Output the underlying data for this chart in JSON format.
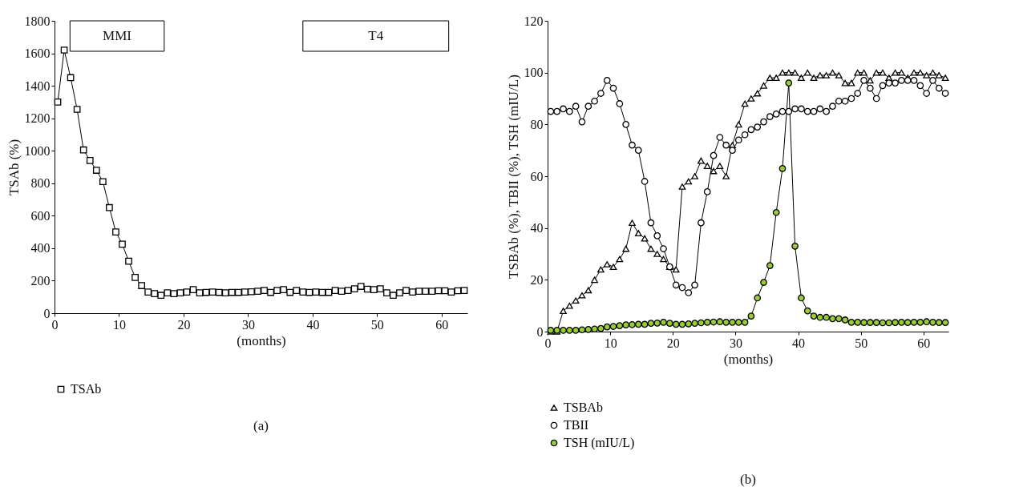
{
  "chart_data": [
    {
      "type": "line",
      "xlabel": "(months)",
      "ylabel": "TSAb (%)",
      "xlim": [
        0,
        64
      ],
      "xticks": [
        0,
        10,
        20,
        30,
        40,
        50,
        60
      ],
      "ylim": [
        0,
        1800
      ],
      "yticks": [
        0,
        200,
        400,
        600,
        800,
        1000,
        1200,
        1400,
        1600,
        1800
      ],
      "legend": "bottom",
      "annotations": [
        "(a)"
      ],
      "bands": [
        {
          "axis": "x",
          "from": 2.4,
          "to": 17,
          "label": "MMI"
        },
        {
          "axis": "x",
          "from": 38.5,
          "to": 61.1,
          "label": "T4"
        }
      ],
      "x": [
        0.5,
        1.5,
        2.5,
        3.5,
        4.5,
        5.5,
        6.5,
        7.5,
        8.5,
        9.5,
        10.5,
        11.5,
        12.5,
        13.5,
        14.5,
        15.5,
        16.5,
        17.5,
        18.5,
        19.5,
        20.5,
        21.5,
        22.5,
        23.5,
        24.5,
        25.5,
        26.5,
        27.5,
        28.5,
        29.5,
        30.5,
        31.5,
        32.5,
        33.5,
        34.5,
        35.5,
        36.5,
        37.5,
        38.5,
        39.5,
        40.5,
        41.5,
        42.5,
        43.5,
        44.5,
        45.5,
        46.5,
        47.5,
        48.5,
        49.5,
        50.5,
        51.5,
        52.5,
        53.5,
        54.5,
        55.5,
        56.5,
        57.5,
        58.5,
        59.5,
        60.5,
        61.5,
        62.5,
        63.5
      ],
      "series": [
        {
          "name": "TSAb",
          "color": "#000000",
          "marker": "square",
          "values": [
            1300,
            1620,
            1450,
            1255,
            1005,
            940,
            880,
            810,
            650,
            500,
            425,
            320,
            220,
            170,
            130,
            120,
            110,
            125,
            120,
            125,
            130,
            145,
            125,
            128,
            130,
            128,
            125,
            128,
            128,
            130,
            132,
            135,
            140,
            128,
            140,
            145,
            128,
            140,
            130,
            128,
            130,
            128,
            128,
            140,
            135,
            140,
            150,
            165,
            148,
            145,
            150,
            125,
            110,
            125,
            140,
            130,
            135,
            135,
            135,
            138,
            138,
            130,
            138,
            140
          ]
        }
      ]
    },
    {
      "type": "line",
      "xlabel": "(months)",
      "ylabel": "TSBAb (%), TBII (%), TSH (mIU/L)",
      "xlim": [
        0,
        64
      ],
      "xticks": [
        0,
        10,
        20,
        30,
        40,
        50,
        60
      ],
      "ylim": [
        0,
        120
      ],
      "yticks": [
        0,
        20,
        40,
        60,
        80,
        100,
        120
      ],
      "legend": "bottom",
      "annotations": [
        "(b)"
      ],
      "x": [
        0.5,
        1.5,
        2.5,
        3.5,
        4.5,
        5.5,
        6.5,
        7.5,
        8.5,
        9.5,
        10.5,
        11.5,
        12.5,
        13.5,
        14.5,
        15.5,
        16.5,
        17.5,
        18.5,
        19.5,
        20.5,
        21.5,
        22.5,
        23.5,
        24.5,
        25.5,
        26.5,
        27.5,
        28.5,
        29.5,
        30.5,
        31.5,
        32.5,
        33.5,
        34.5,
        35.5,
        36.5,
        37.5,
        38.5,
        39.5,
        40.5,
        41.5,
        42.5,
        43.5,
        44.5,
        45.5,
        46.5,
        47.5,
        48.5,
        49.5,
        50.5,
        51.5,
        52.5,
        53.5,
        54.5,
        55.5,
        56.5,
        57.5,
        58.5,
        59.5,
        60.5,
        61.5,
        62.5,
        63.5
      ],
      "series": [
        {
          "name": "TSBAb",
          "color": "#000000",
          "marker": "triangle",
          "values": [
            0,
            0,
            8,
            10,
            12,
            14,
            16,
            20,
            24,
            26,
            25,
            28,
            32,
            42,
            38,
            36,
            32,
            30,
            28,
            25,
            24,
            56,
            58,
            60,
            66,
            64,
            62,
            64,
            60,
            72,
            80,
            88,
            90,
            92,
            95,
            98,
            98,
            100,
            100,
            100,
            98,
            100,
            98,
            99,
            99,
            100,
            99,
            96,
            96,
            100,
            100,
            97,
            100,
            100,
            98,
            100,
            100,
            98,
            100,
            100,
            99,
            100,
            99,
            98
          ]
        },
        {
          "name": "TBII",
          "color": "#000000",
          "marker": "circle",
          "values": [
            85,
            85,
            86,
            85,
            87,
            81,
            87,
            89,
            92,
            97,
            94,
            88,
            80,
            72,
            70,
            58,
            42,
            37,
            32,
            25,
            18,
            17,
            15,
            18,
            42,
            54,
            68,
            75,
            72,
            70,
            74,
            76,
            78,
            79,
            81,
            83,
            84,
            85,
            85,
            86,
            86,
            85,
            85,
            86,
            85,
            87,
            89,
            89,
            90,
            92,
            97,
            94,
            90,
            95,
            96,
            96,
            97,
            97,
            97,
            95,
            92,
            97,
            94,
            92
          ]
        },
        {
          "name": "TSH (mIU/L)",
          "color": "#9acd32",
          "marker": "circle",
          "values": [
            0.5,
            0.5,
            0.5,
            0.5,
            0.5,
            0.7,
            0.8,
            1,
            1.2,
            1.8,
            2,
            2.3,
            2.6,
            2.7,
            2.8,
            2.8,
            3.2,
            3.3,
            3.6,
            3.2,
            2.8,
            2.8,
            3,
            3.2,
            3.4,
            3.6,
            3.7,
            3.8,
            3.6,
            3.6,
            3.6,
            3.6,
            6,
            13,
            19,
            25.5,
            46,
            63,
            96,
            33,
            13,
            8,
            6,
            5.5,
            5.5,
            5,
            5,
            4.5,
            3.6,
            3.6,
            3.5,
            3.5,
            3.5,
            3.4,
            3.4,
            3.5,
            3.6,
            3.5,
            3.6,
            3.6,
            3.8,
            3.6,
            3.5,
            3.5
          ]
        }
      ]
    }
  ]
}
